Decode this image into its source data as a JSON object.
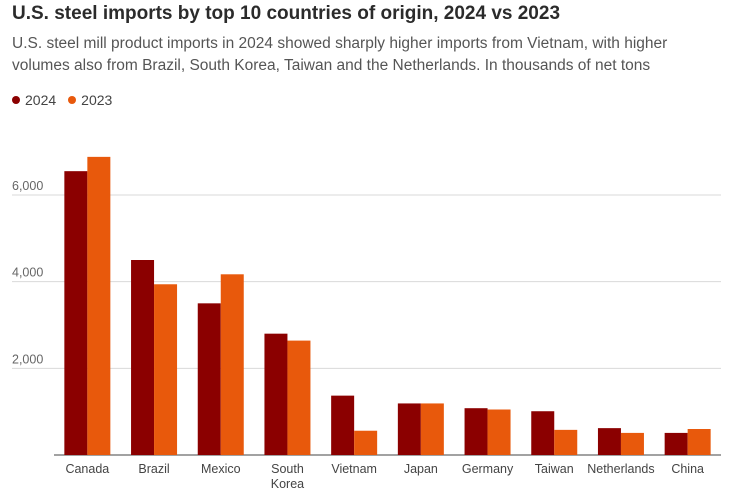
{
  "chart_data": {
    "type": "bar",
    "title": "U.S. steel imports by top 10 countries of origin, 2024 vs 2023",
    "subtitle": "U.S. steel mill product imports in 2024 showed sharply higher imports from Vietnam, with higher volumes also from Brazil, South Korea, Taiwan and the Netherlands. In thousands of net tons",
    "categories": [
      "Canada",
      "Brazil",
      "Mexico",
      "South Korea",
      "Vietnam",
      "Japan",
      "Germany",
      "Taiwan",
      "Netherlands",
      "China"
    ],
    "series": [
      {
        "name": "2024",
        "color": "#8b0000",
        "values": [
          6550,
          4500,
          3500,
          2800,
          1370,
          1190,
          1080,
          1010,
          620,
          510
        ]
      },
      {
        "name": "2023",
        "color": "#e8590c",
        "values": [
          6880,
          3940,
          4170,
          2640,
          560,
          1190,
          1050,
          580,
          510,
          600
        ]
      }
    ],
    "ylim": [
      0,
      7200
    ],
    "yticks": [
      2000,
      4000,
      6000
    ],
    "ytick_labels": [
      "2,000",
      "4,000",
      "6,000"
    ],
    "xlabel": "",
    "ylabel": "",
    "grid": true,
    "legend": "top-left"
  }
}
